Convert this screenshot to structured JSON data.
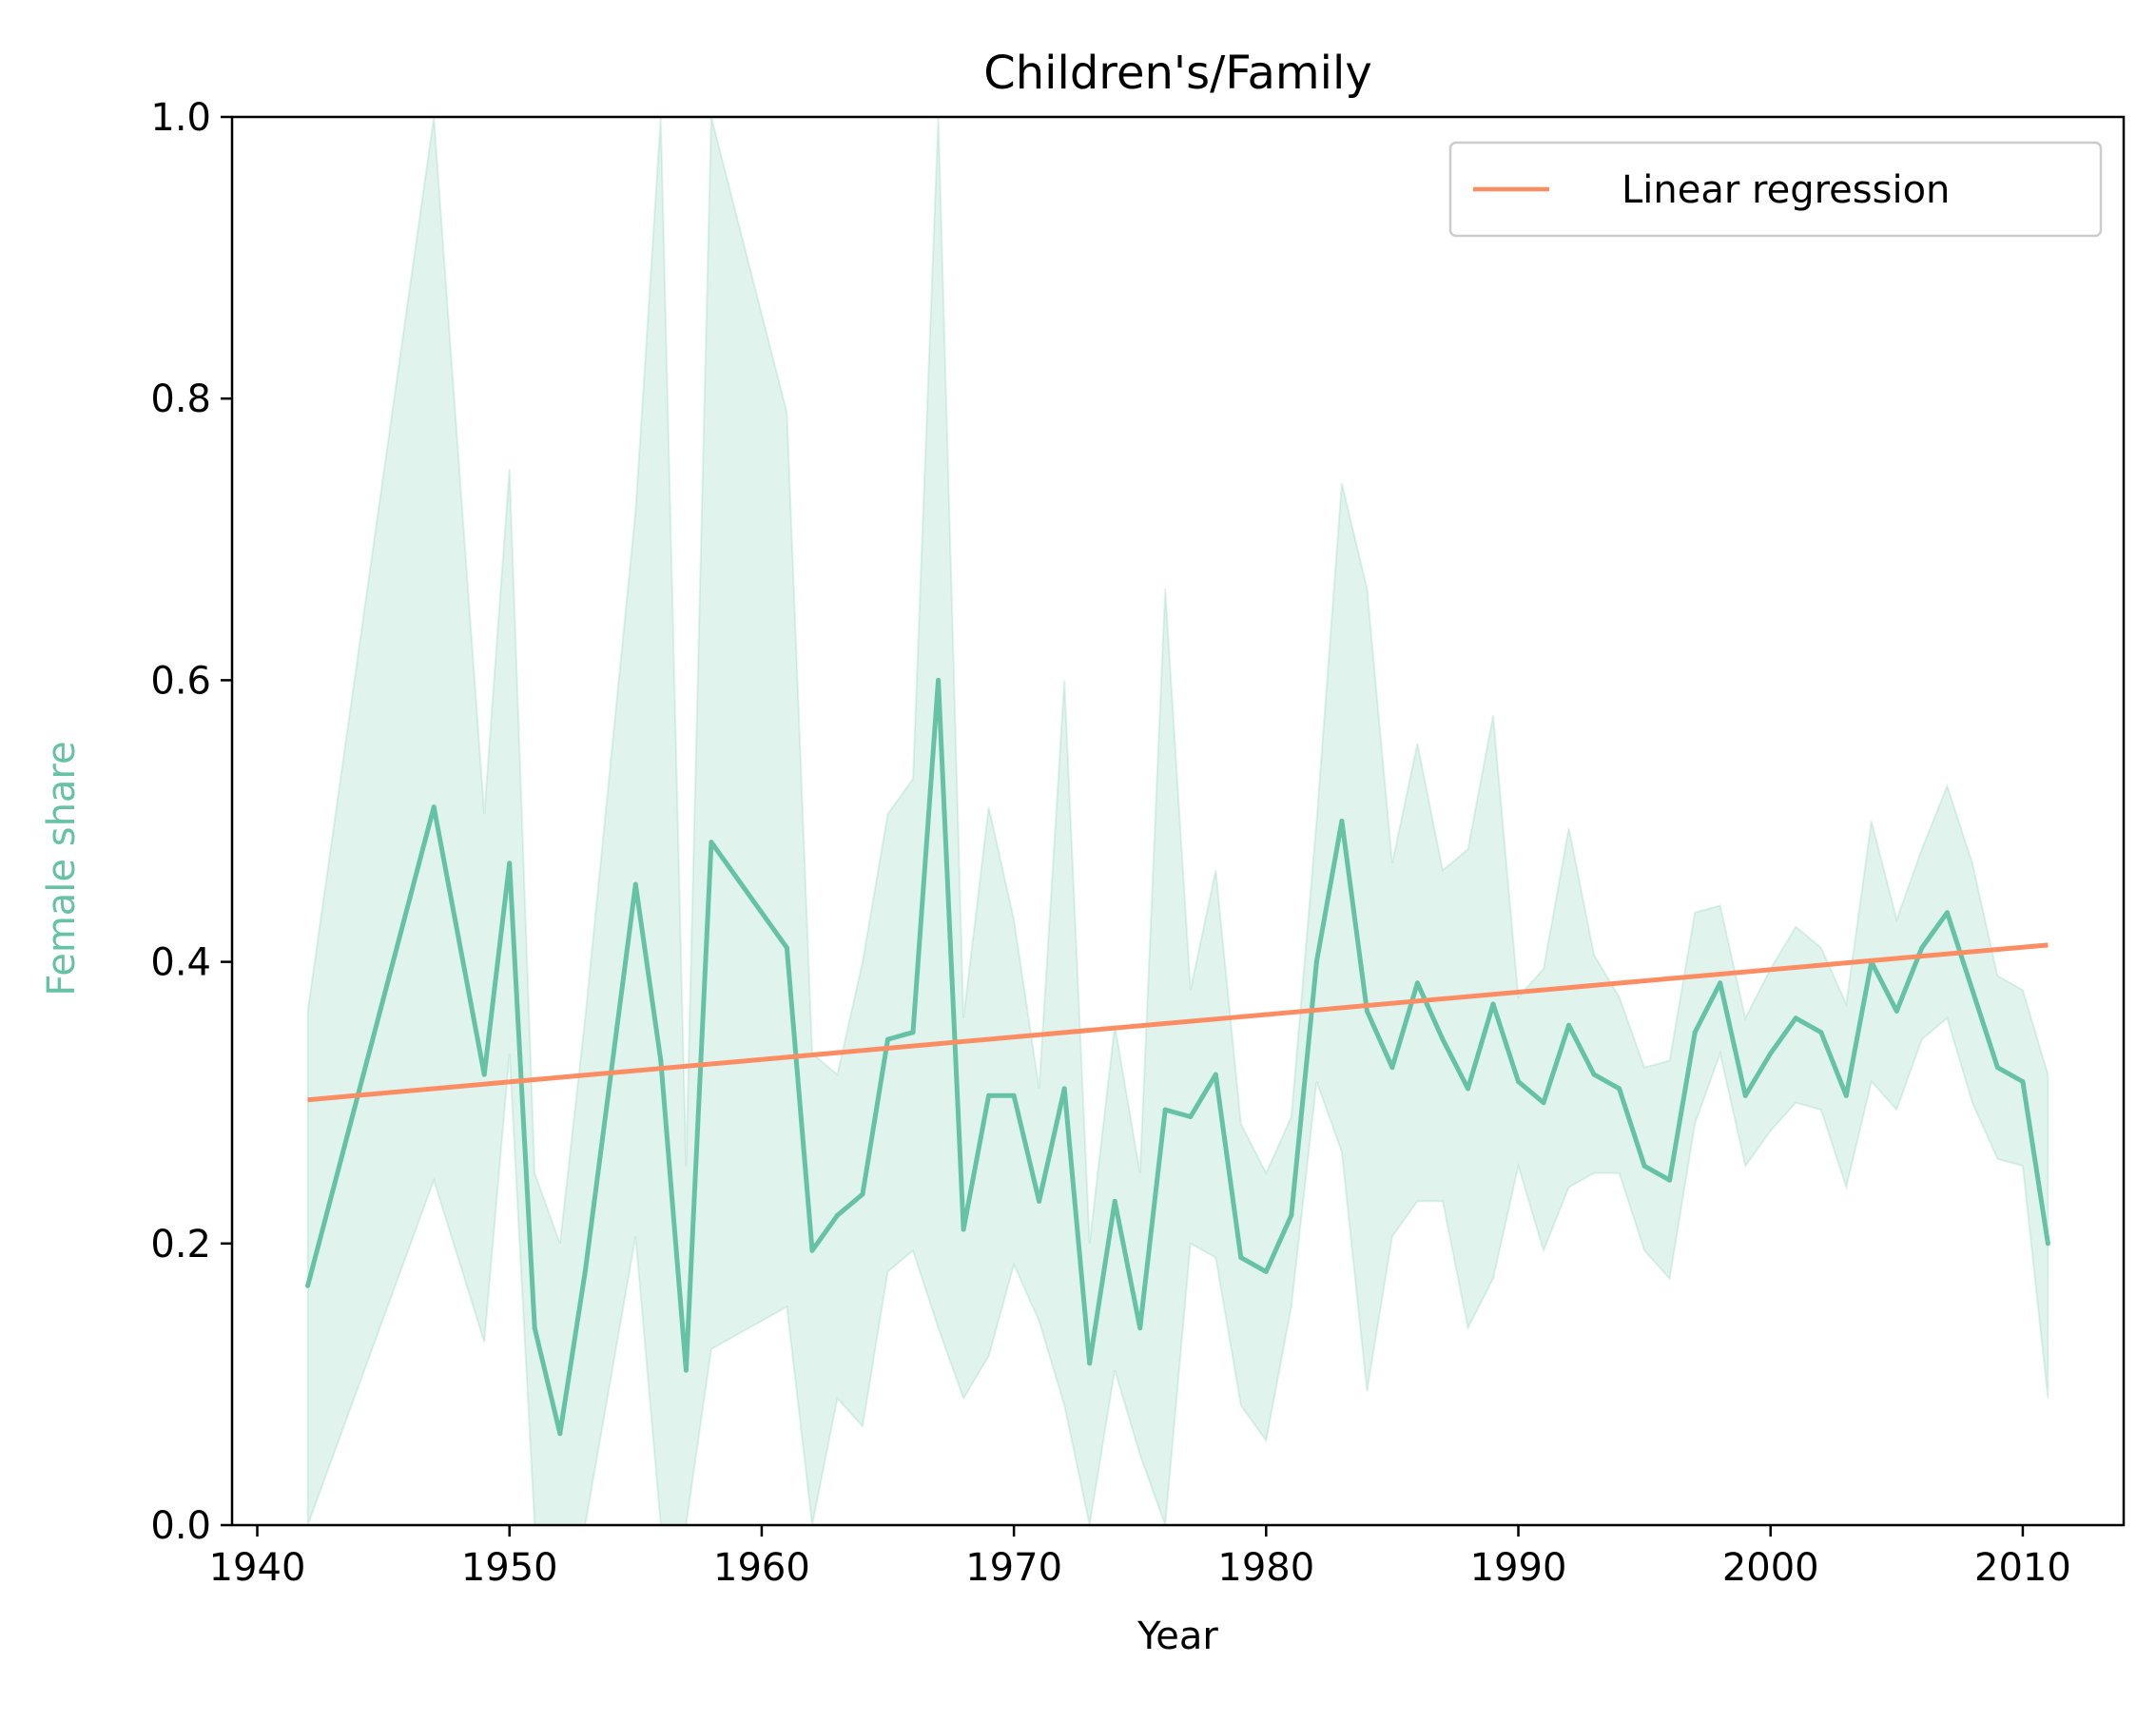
{
  "chart_data": {
    "type": "line",
    "title": "Children's/Family",
    "xlabel": "Year",
    "ylabel": "Female share",
    "xlim": [
      1939,
      2014
    ],
    "ylim": [
      0.0,
      1.0
    ],
    "x_ticks": [
      1940,
      1950,
      1960,
      1970,
      1980,
      1990,
      2000,
      2010
    ],
    "y_ticks": [
      0.0,
      0.2,
      0.4,
      0.6,
      0.8,
      1.0
    ],
    "y_tick_labels": [
      "0.0",
      "0.2",
      "0.4",
      "0.6",
      "0.8",
      "1.0"
    ],
    "grid": false,
    "legend": {
      "placement": "top-right",
      "entries": [
        "Linear regression"
      ]
    },
    "colors": {
      "series": "#66c2a5",
      "band": "#66c2a5",
      "regression": "#fc8d62"
    },
    "series": [
      {
        "x": [
          1942,
          1947,
          1949,
          1950,
          1951,
          1952,
          1953,
          1955,
          1956,
          1957,
          1958,
          1961,
          1962,
          1963,
          1964,
          1965,
          1966,
          1967,
          1968,
          1969,
          1970,
          1971,
          1972,
          1973,
          1974,
          1975,
          1976,
          1977,
          1978,
          1979,
          1980,
          1981,
          1982,
          1983,
          1984,
          1985,
          1986,
          1987,
          1988,
          1989,
          1990,
          1991,
          1992,
          1993,
          1994,
          1995,
          1996,
          1997,
          1998,
          1999,
          2000,
          2001,
          2002,
          2003,
          2004,
          2005,
          2006,
          2007,
          2008,
          2009,
          2010,
          2011
        ],
        "values": [
          0.17,
          0.51,
          0.32,
          0.47,
          0.14,
          0.065,
          0.18,
          0.455,
          0.33,
          0.11,
          0.485,
          0.41,
          0.195,
          0.22,
          0.235,
          0.345,
          0.35,
          0.6,
          0.21,
          0.305,
          0.305,
          0.23,
          0.31,
          0.115,
          0.23,
          0.14,
          0.295,
          0.29,
          0.32,
          0.19,
          0.18,
          0.22,
          0.4,
          0.5,
          0.365,
          0.325,
          0.385,
          0.345,
          0.31,
          0.37,
          0.315,
          0.3,
          0.355,
          0.32,
          0.31,
          0.255,
          0.245,
          0.35,
          0.385,
          0.305,
          0.335,
          0.36,
          0.35,
          0.305,
          0.4,
          0.365,
          0.41,
          0.435,
          0.38,
          0.325,
          0.315,
          0.2
        ],
        "lower": [
          0.0,
          0.245,
          0.13,
          0.335,
          0.0,
          0.0,
          0.0,
          0.205,
          0.0,
          0.0,
          0.125,
          0.155,
          0.0,
          0.09,
          0.07,
          0.18,
          0.195,
          0.14,
          0.09,
          0.12,
          0.185,
          0.145,
          0.085,
          0.0,
          0.11,
          0.05,
          0.0,
          0.2,
          0.19,
          0.085,
          0.06,
          0.155,
          0.315,
          0.265,
          0.095,
          0.205,
          0.23,
          0.23,
          0.14,
          0.175,
          0.255,
          0.195,
          0.24,
          0.25,
          0.25,
          0.195,
          0.175,
          0.285,
          0.335,
          0.255,
          0.28,
          0.3,
          0.295,
          0.24,
          0.315,
          0.295,
          0.345,
          0.36,
          0.3,
          0.26,
          0.255,
          0.09
        ],
        "upper": [
          0.365,
          1.0,
          0.505,
          0.75,
          0.25,
          0.2,
          0.36,
          0.72,
          1.0,
          0.255,
          1.0,
          0.79,
          0.335,
          0.32,
          0.4,
          0.505,
          0.53,
          1.0,
          0.36,
          0.51,
          0.43,
          0.31,
          0.6,
          0.2,
          0.355,
          0.25,
          0.665,
          0.38,
          0.465,
          0.285,
          0.25,
          0.29,
          0.5,
          0.74,
          0.665,
          0.47,
          0.555,
          0.465,
          0.48,
          0.575,
          0.375,
          0.395,
          0.495,
          0.405,
          0.375,
          0.325,
          0.33,
          0.435,
          0.44,
          0.36,
          0.395,
          0.425,
          0.41,
          0.37,
          0.5,
          0.43,
          0.48,
          0.525,
          0.47,
          0.39,
          0.38,
          0.32
        ]
      },
      {
        "name": "Linear regression",
        "x": [
          1942,
          2011
        ],
        "values": [
          0.302,
          0.412
        ]
      }
    ]
  }
}
